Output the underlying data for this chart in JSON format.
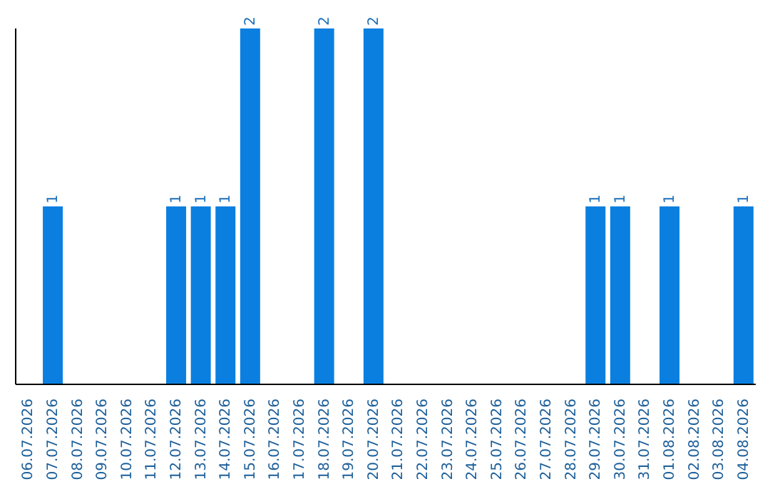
{
  "chart_data": {
    "type": "bar",
    "categories": [
      "06.07.2026",
      "07.07.2026",
      "08.07.2026",
      "09.07.2026",
      "10.07.2026",
      "11.07.2026",
      "12.07.2026",
      "13.07.2026",
      "14.07.2026",
      "15.07.2026",
      "16.07.2026",
      "17.07.2026",
      "18.07.2026",
      "19.07.2026",
      "20.07.2026",
      "21.07.2026",
      "22.07.2026",
      "23.07.2026",
      "24.07.2026",
      "25.07.2026",
      "26.07.2026",
      "27.07.2026",
      "28.07.2026",
      "29.07.2026",
      "30.07.2026",
      "31.07.2026",
      "01.08.2026",
      "02.08.2026",
      "03.08.2026",
      "04.08.2026"
    ],
    "values": [
      0,
      1,
      0,
      0,
      0,
      0,
      1,
      1,
      1,
      2,
      0,
      0,
      2,
      0,
      2,
      0,
      0,
      0,
      0,
      0,
      0,
      0,
      0,
      1,
      1,
      0,
      1,
      0,
      0,
      1
    ],
    "value_labels": [
      null,
      "1",
      null,
      null,
      null,
      null,
      "1",
      "1",
      "1",
      "2",
      null,
      null,
      "2",
      null,
      "2",
      null,
      null,
      null,
      null,
      null,
      null,
      null,
      null,
      "1",
      "1",
      null,
      "1",
      null,
      null,
      "1"
    ],
    "color": "#0a7fe0",
    "relative": false,
    "grid": false,
    "legend": false
  }
}
